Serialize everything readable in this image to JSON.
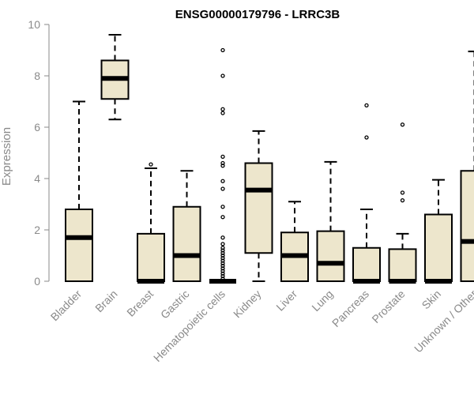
{
  "chart_data": {
    "type": "boxplot",
    "title": "ENSG00000179796 - LRRC3B",
    "xlabel": "",
    "ylabel": "Expression",
    "ylim": [
      0,
      10
    ],
    "yticks": [
      0,
      2,
      4,
      6,
      8,
      10
    ],
    "grid": false,
    "box_color": "#ede6cc",
    "categories": [
      "Bladder",
      "Brain",
      "Breast",
      "Gastric",
      "Hematopoietic cells",
      "Kidney",
      "Liver",
      "Lung",
      "Pancreas",
      "Prostate",
      "Skin",
      "Unknown / Other"
    ],
    "boxes": [
      {
        "min": 0,
        "q1": 0,
        "median": 1.7,
        "q3": 2.8,
        "max": 7.0,
        "outliers": []
      },
      {
        "min": 6.3,
        "q1": 7.1,
        "median": 7.9,
        "q3": 8.6,
        "max": 9.6,
        "outliers": []
      },
      {
        "min": 0,
        "q1": 0,
        "median": 0,
        "q3": 1.85,
        "max": 4.4,
        "outliers": [
          4.55
        ]
      },
      {
        "min": 0,
        "q1": 0,
        "median": 1.0,
        "q3": 2.9,
        "max": 4.3,
        "outliers": []
      },
      {
        "min": 0,
        "q1": 0,
        "median": 0,
        "q3": 0,
        "max": 0,
        "outliers": [
          9.0,
          8.0,
          6.7,
          6.55,
          4.85,
          4.6,
          4.5,
          3.9,
          3.6,
          2.9,
          2.5,
          1.7,
          1.45,
          1.3,
          1.2,
          1.1,
          1.0,
          0.9,
          0.8,
          0.7,
          0.6,
          0.5,
          0.4,
          0.3,
          0.2,
          0.1
        ]
      },
      {
        "min": 0,
        "q1": 1.1,
        "median": 3.55,
        "q3": 4.6,
        "max": 5.85,
        "outliers": []
      },
      {
        "min": 0,
        "q1": 0,
        "median": 1.0,
        "q3": 1.9,
        "max": 3.1,
        "outliers": []
      },
      {
        "min": 0,
        "q1": 0,
        "median": 0.7,
        "q3": 1.95,
        "max": 4.65,
        "outliers": []
      },
      {
        "min": 0,
        "q1": 0,
        "median": 0,
        "q3": 1.3,
        "max": 2.8,
        "outliers": [
          6.85,
          5.6
        ]
      },
      {
        "min": 0,
        "q1": 0,
        "median": 0,
        "q3": 1.25,
        "max": 1.85,
        "outliers": [
          6.1,
          3.45,
          3.15
        ]
      },
      {
        "min": 0,
        "q1": 0,
        "median": 0,
        "q3": 2.6,
        "max": 3.95,
        "outliers": []
      },
      {
        "min": 0,
        "q1": 0,
        "median": 1.55,
        "q3": 4.3,
        "max": 8.95,
        "outliers": []
      }
    ]
  }
}
